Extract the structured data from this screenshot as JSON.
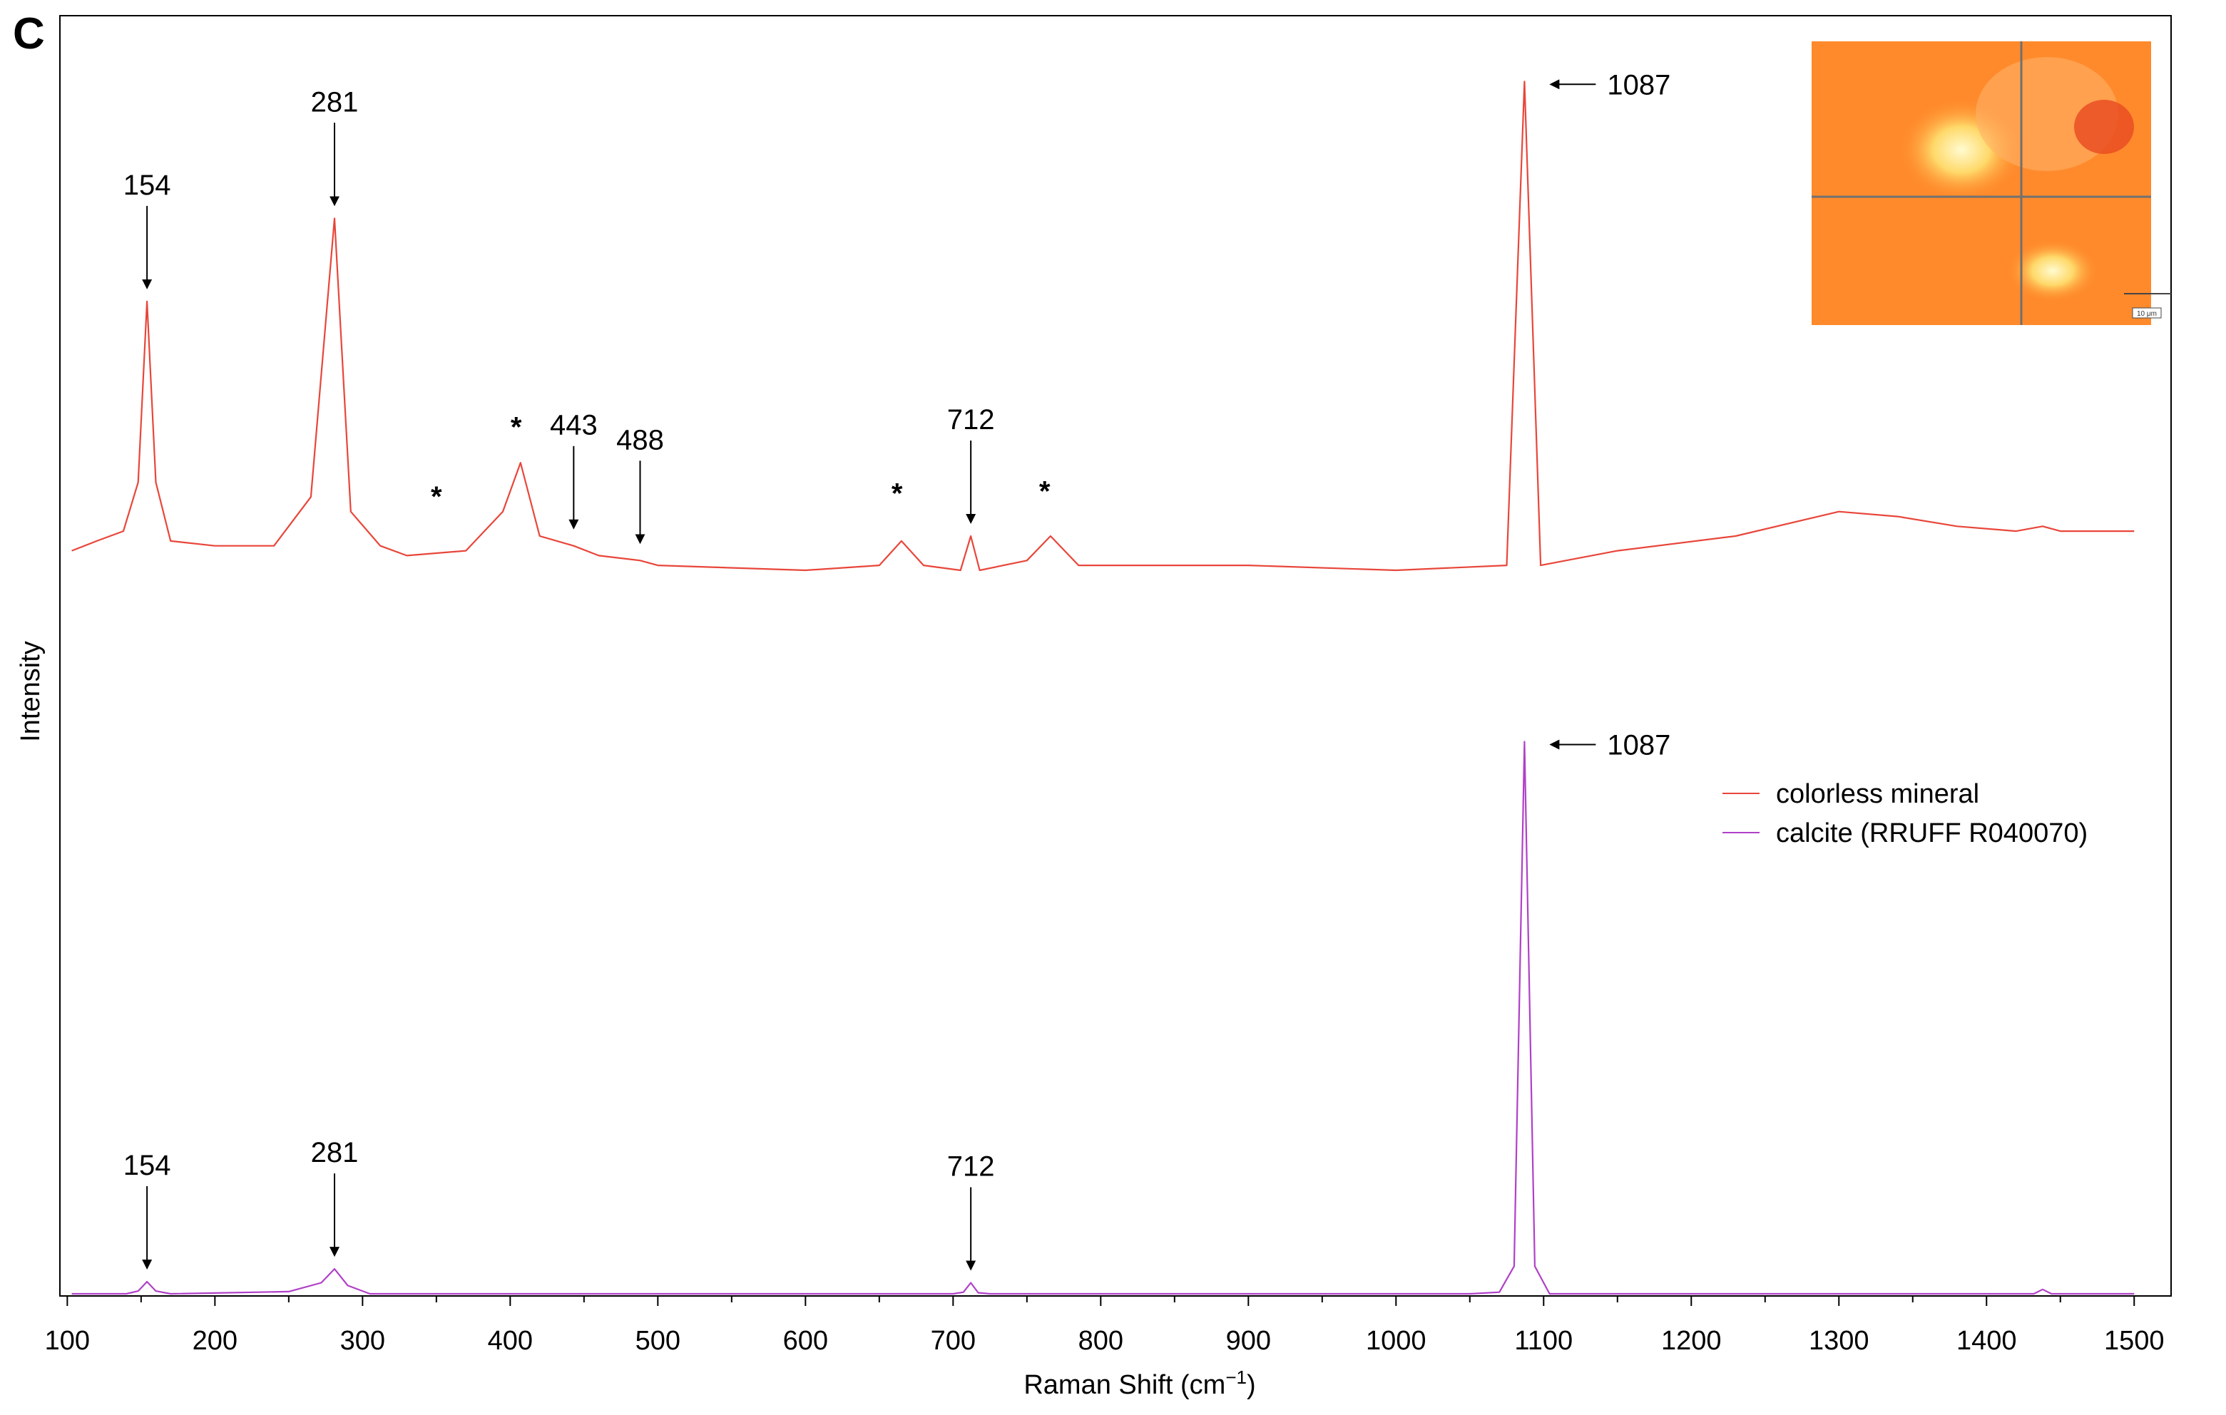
{
  "panel_label": "C",
  "chart_data": {
    "type": "line",
    "xlabel": "Raman Shift (cm",
    "xlabel_sup": "−1",
    "xlabel_close": ")",
    "ylabel": "Intensity",
    "xlim": [
      95,
      1525
    ],
    "x_ticks": [
      "100",
      "200",
      "300",
      "400",
      "500",
      "600",
      "700",
      "800",
      "900",
      "1000",
      "1100",
      "1200",
      "1300",
      "1400",
      "1500"
    ],
    "grid": false,
    "legend_position": "right",
    "series": [
      {
        "name": "colorless mineral",
        "color": "#e8463a",
        "baseline": 0.1,
        "ylim": [
          0,
          1.05
        ],
        "points": [
          [
            103,
            0.04
          ],
          [
            120,
            0.06
          ],
          [
            138,
            0.08
          ],
          [
            148,
            0.18
          ],
          [
            154,
            0.55
          ],
          [
            160,
            0.18
          ],
          [
            170,
            0.06
          ],
          [
            200,
            0.05
          ],
          [
            240,
            0.05
          ],
          [
            265,
            0.15
          ],
          [
            281,
            0.72
          ],
          [
            292,
            0.12
          ],
          [
            312,
            0.05
          ],
          [
            330,
            0.03
          ],
          [
            370,
            0.04
          ],
          [
            395,
            0.12
          ],
          [
            407,
            0.22
          ],
          [
            420,
            0.07
          ],
          [
            443,
            0.05
          ],
          [
            460,
            0.03
          ],
          [
            488,
            0.02
          ],
          [
            500,
            0.01
          ],
          [
            600,
            0.0
          ],
          [
            650,
            0.01
          ],
          [
            665,
            0.06
          ],
          [
            680,
            0.01
          ],
          [
            705,
            0.0
          ],
          [
            712,
            0.07
          ],
          [
            718,
            0.0
          ],
          [
            750,
            0.02
          ],
          [
            766,
            0.07
          ],
          [
            785,
            0.01
          ],
          [
            900,
            0.01
          ],
          [
            1000,
            0.0
          ],
          [
            1075,
            0.01
          ],
          [
            1087,
            1.0
          ],
          [
            1098,
            0.01
          ],
          [
            1150,
            0.04
          ],
          [
            1230,
            0.07
          ],
          [
            1300,
            0.12
          ],
          [
            1340,
            0.11
          ],
          [
            1380,
            0.09
          ],
          [
            1420,
            0.08
          ],
          [
            1438,
            0.09
          ],
          [
            1450,
            0.08
          ],
          [
            1500,
            0.08
          ]
        ]
      },
      {
        "name": "calcite (RRUFF R040070)",
        "color": "#b040c8",
        "baseline": 0,
        "ylim": [
          0,
          1.02
        ],
        "points": [
          [
            103,
            0.0
          ],
          [
            140,
            0.0
          ],
          [
            148,
            0.005
          ],
          [
            154,
            0.022
          ],
          [
            160,
            0.005
          ],
          [
            170,
            0.0
          ],
          [
            250,
            0.004
          ],
          [
            272,
            0.02
          ],
          [
            281,
            0.045
          ],
          [
            290,
            0.015
          ],
          [
            305,
            0.0
          ],
          [
            700,
            0.0
          ],
          [
            707,
            0.003
          ],
          [
            712,
            0.02
          ],
          [
            717,
            0.002
          ],
          [
            725,
            0.0
          ],
          [
            1050,
            0.0
          ],
          [
            1070,
            0.003
          ],
          [
            1080,
            0.05
          ],
          [
            1087,
            1.0
          ],
          [
            1094,
            0.05
          ],
          [
            1104,
            0.0
          ],
          [
            1400,
            0.0
          ],
          [
            1432,
            0.0
          ],
          [
            1438,
            0.008
          ],
          [
            1444,
            0.0
          ],
          [
            1500,
            0.0
          ]
        ]
      }
    ],
    "annotations": [
      {
        "label": "154",
        "x": 154,
        "series": "colorless mineral"
      },
      {
        "label": "281",
        "x": 281,
        "series": "colorless mineral"
      },
      {
        "label": "443",
        "x": 443,
        "series": "colorless mineral"
      },
      {
        "label": "488",
        "x": 488,
        "series": "colorless mineral"
      },
      {
        "label": "712",
        "x": 712,
        "series": "colorless mineral"
      },
      {
        "label": "1087",
        "x": 1087,
        "series": "colorless mineral"
      },
      {
        "label": "154",
        "x": 154,
        "series": "calcite (RRUFF R040070)"
      },
      {
        "label": "281",
        "x": 281,
        "series": "calcite (RRUFF R040070)"
      },
      {
        "label": "712",
        "x": 712,
        "series": "calcite (RRUFF R040070)"
      },
      {
        "label": "1087",
        "x": 1087,
        "series": "calcite (RRUFF R040070)"
      }
    ],
    "asterisks": [
      "*",
      "*",
      "*",
      "*"
    ],
    "inset": {
      "description_color": "#ff8c2a",
      "scale_bar_text": "10 μm"
    }
  }
}
